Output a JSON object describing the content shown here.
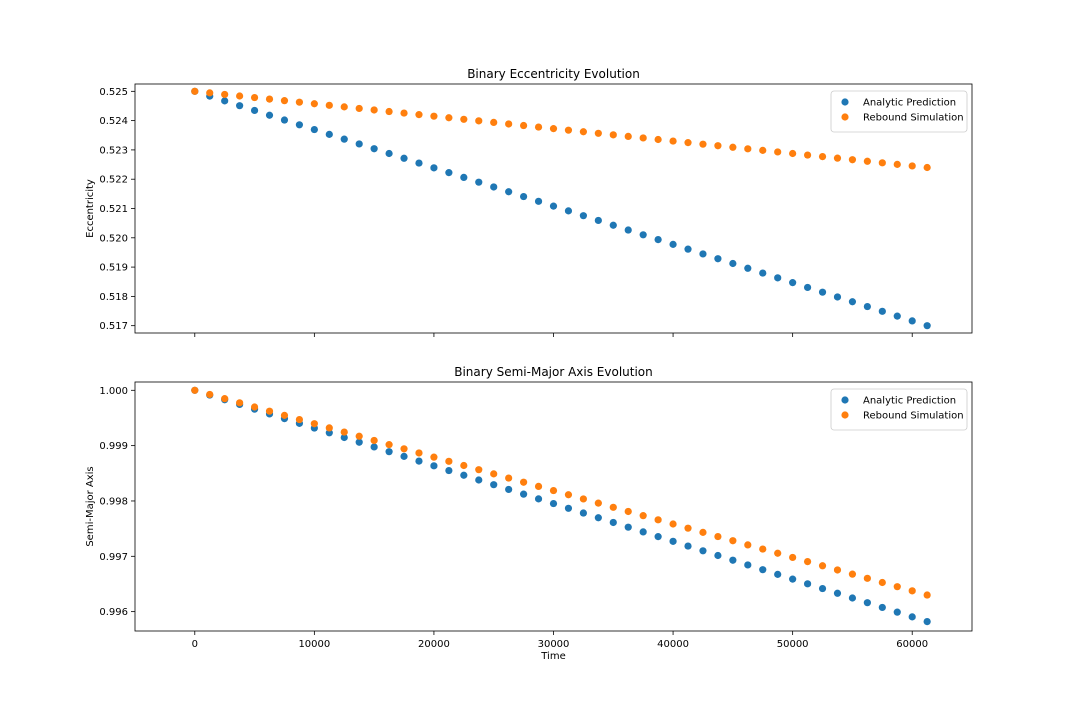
{
  "chart_data": [
    {
      "type": "scatter",
      "title": "Binary Eccentricity Evolution",
      "xlabel": "",
      "ylabel": "Eccentricity",
      "xlim": [
        -5000,
        65000
      ],
      "ylim": [
        0.51675,
        0.52525
      ],
      "xticks": [
        0,
        10000,
        20000,
        30000,
        40000,
        50000,
        60000
      ],
      "xtick_labels_visible": false,
      "yticks": [
        0.517,
        0.518,
        0.519,
        0.52,
        0.521,
        0.522,
        0.523,
        0.524,
        0.525
      ],
      "ytick_decimals": 3,
      "grid": false,
      "legend": "top-right",
      "x": {
        "start": 0,
        "step": 1250,
        "count": 50
      },
      "series": [
        {
          "name": "Analytic Prediction",
          "color": "#1f77b4",
          "start": 0.525,
          "end": 0.517
        },
        {
          "name": "Rebound Simulation",
          "color": "#ff7f0e",
          "start": 0.525,
          "end": 0.5224
        }
      ]
    },
    {
      "type": "scatter",
      "title": "Binary Semi-Major Axis Evolution",
      "xlabel": "Time",
      "ylabel": "Semi-Major Axis",
      "xlim": [
        -5000,
        65000
      ],
      "ylim": [
        0.99565,
        1.00015
      ],
      "xticks": [
        0,
        10000,
        20000,
        30000,
        40000,
        50000,
        60000
      ],
      "xtick_labels_visible": true,
      "yticks": [
        0.996,
        0.997,
        0.998,
        0.999,
        1.0
      ],
      "ytick_decimals": 3,
      "grid": false,
      "legend": "top-right",
      "x": {
        "start": 0,
        "step": 1250,
        "count": 50
      },
      "series": [
        {
          "name": "Analytic Prediction",
          "color": "#1f77b4",
          "start": 1.0,
          "end": 0.99582
        },
        {
          "name": "Rebound Simulation",
          "color": "#ff7f0e",
          "start": 1.0,
          "end": 0.9963
        }
      ]
    }
  ]
}
